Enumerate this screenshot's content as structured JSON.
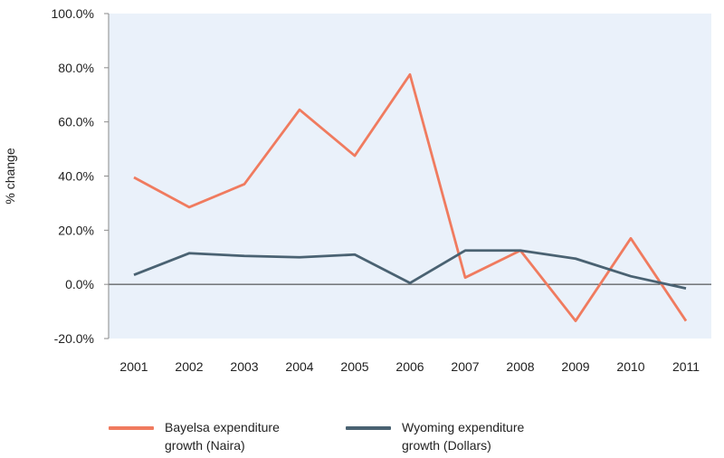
{
  "chart_data": {
    "type": "line",
    "title": "",
    "xlabel": "",
    "ylabel": "% change",
    "categories": [
      "2001",
      "2002",
      "2003",
      "2004",
      "2005",
      "2006",
      "2007",
      "2008",
      "2009",
      "2010",
      "2011"
    ],
    "ylim": [
      -20,
      100
    ],
    "yticks": [
      -20,
      0,
      20,
      40,
      60,
      80,
      100
    ],
    "ytick_labels": [
      "-20.0%",
      "0.0%",
      "20.0%",
      "40.0%",
      "60.0%",
      "80.0%",
      "100.0%"
    ],
    "grid": false,
    "legend_position": "bottom",
    "series": [
      {
        "name": "Bayelsa expenditure growth (Naira)",
        "color": "#f07b5f",
        "values": [
          39.5,
          28.5,
          37,
          64.5,
          47.5,
          77.5,
          2.5,
          12.5,
          -13.5,
          17,
          -13.5
        ]
      },
      {
        "name": "Wyoming expenditure growth (Dollars)",
        "color": "#4a6272",
        "values": [
          3.5,
          11.5,
          10.5,
          10,
          11,
          0.5,
          12.5,
          12.5,
          9.5,
          3,
          -1.5
        ]
      }
    ],
    "plot_background": "#eaf1fa"
  },
  "legend": {
    "items": [
      {
        "line1": "Bayelsa expenditure",
        "line2": "growth (Naira)",
        "color": "#f07b5f"
      },
      {
        "line1": "Wyoming expenditure",
        "line2": "growth (Dollars)",
        "color": "#4a6272"
      }
    ]
  }
}
